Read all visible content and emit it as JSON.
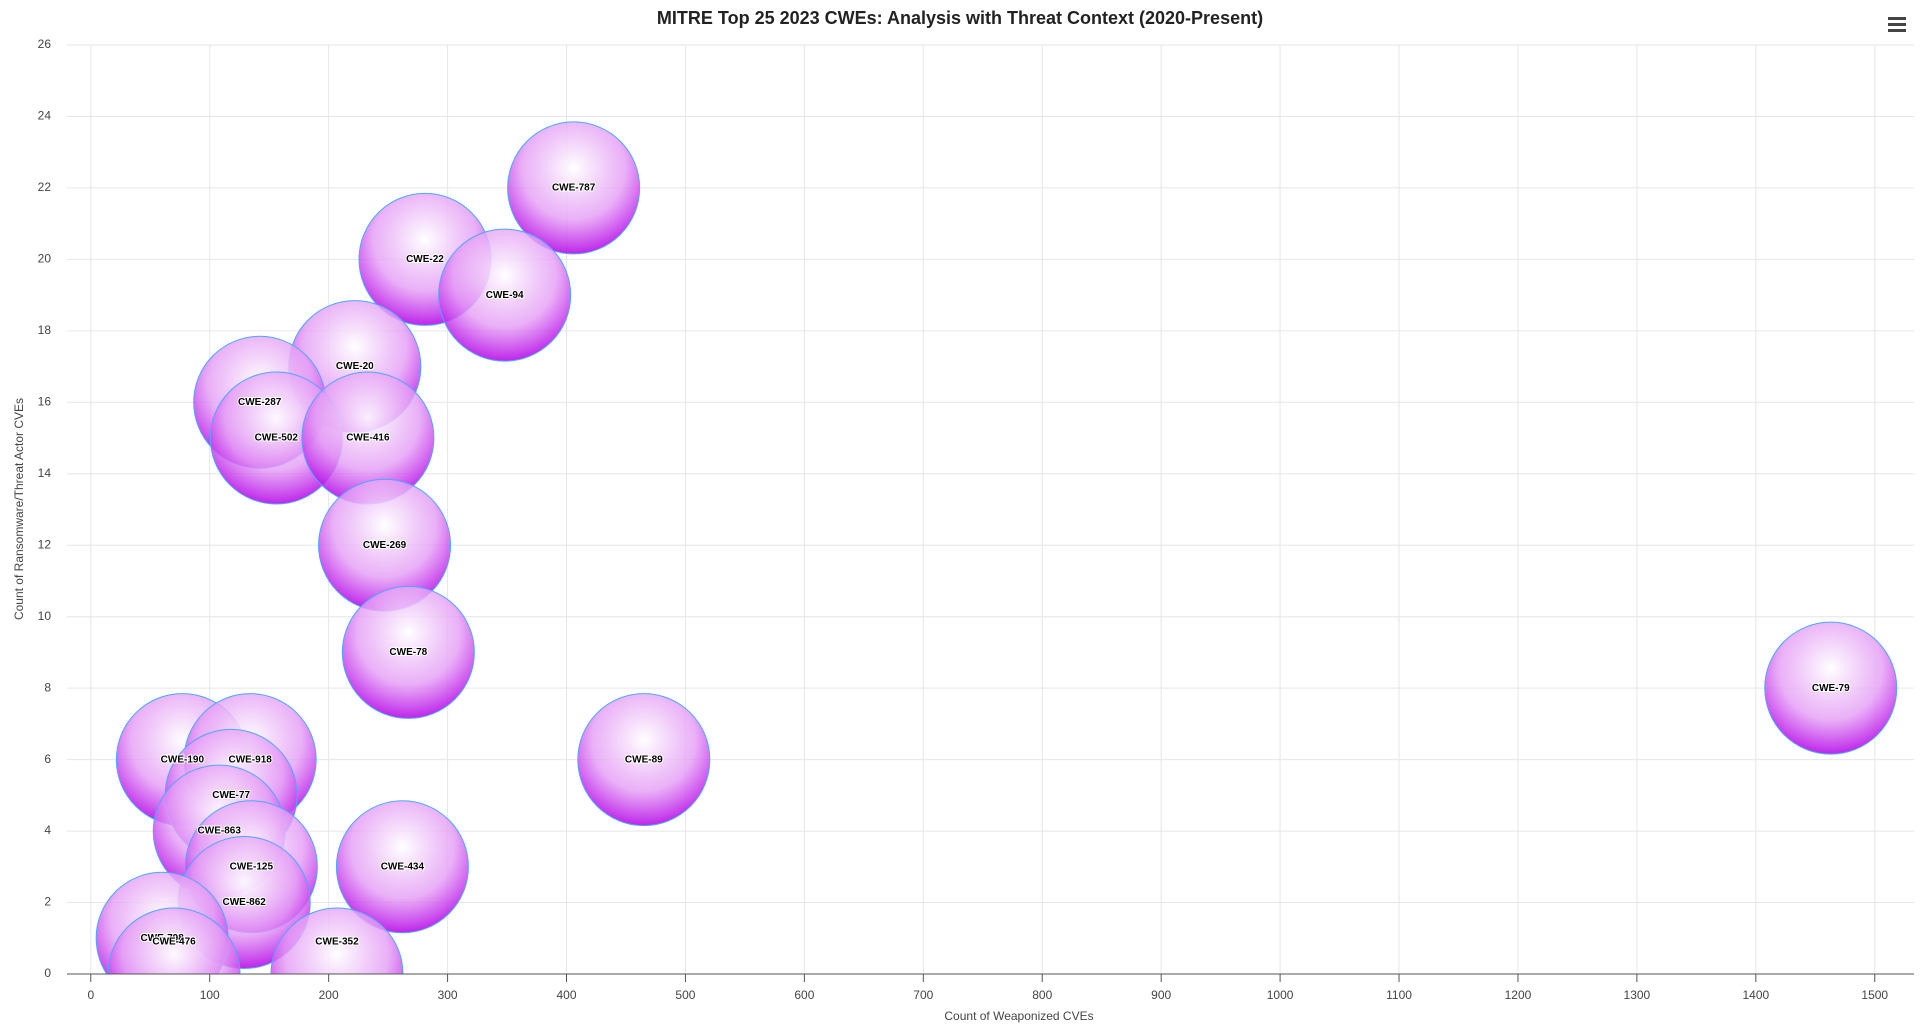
{
  "chart_data": {
    "type": "scatter",
    "title": "MITRE Top 25 2023 CWEs: Analysis with Threat Context (2020-Present)",
    "x_label": "Count of Weaponized CVEs",
    "y_label": "Count of Ransomware/Threat Actor CVEs",
    "xlim": [
      -20,
      1533
    ],
    "ylim": [
      0,
      26
    ],
    "xticks": [
      0,
      100,
      200,
      300,
      400,
      500,
      600,
      700,
      800,
      900,
      1000,
      1100,
      1200,
      1300,
      1400,
      1500
    ],
    "yticks": [
      0,
      2,
      4,
      6,
      8,
      10,
      12,
      14,
      16,
      18,
      20,
      22,
      24,
      26
    ],
    "grid": true,
    "points": [
      {
        "label": "CWE-787",
        "x": 406,
        "y": 22
      },
      {
        "label": "CWE-22",
        "x": 281,
        "y": 20
      },
      {
        "label": "CWE-94",
        "x": 348,
        "y": 19
      },
      {
        "label": "CWE-20",
        "x": 222,
        "y": 17
      },
      {
        "label": "CWE-287",
        "x": 142,
        "y": 16
      },
      {
        "label": "CWE-502",
        "x": 156,
        "y": 15
      },
      {
        "label": "CWE-416",
        "x": 233,
        "y": 15
      },
      {
        "label": "CWE-269",
        "x": 247,
        "y": 12
      },
      {
        "label": "CWE-78",
        "x": 267,
        "y": 9
      },
      {
        "label": "CWE-79",
        "x": 1463,
        "y": 8
      },
      {
        "label": "CWE-89",
        "x": 465,
        "y": 6
      },
      {
        "label": "CWE-190",
        "x": 77,
        "y": 6
      },
      {
        "label": "CWE-918",
        "x": 134,
        "y": 6
      },
      {
        "label": "CWE-77",
        "x": 118,
        "y": 5
      },
      {
        "label": "CWE-863",
        "x": 108,
        "y": 4
      },
      {
        "label": "CWE-125",
        "x": 135,
        "y": 3
      },
      {
        "label": "CWE-862",
        "x": 129,
        "y": 2
      },
      {
        "label": "CWE-434",
        "x": 262,
        "y": 3
      },
      {
        "label": "CWE-798",
        "x": 60,
        "y": 1
      },
      {
        "label": "CWE-476",
        "x": 70,
        "y": 0
      },
      {
        "label": "CWE-352",
        "x": 207,
        "y": 0
      }
    ]
  }
}
